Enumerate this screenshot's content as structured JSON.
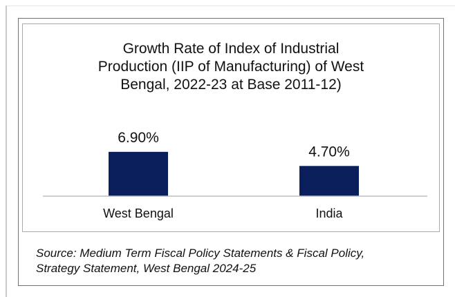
{
  "chart_data": {
    "type": "bar",
    "title_lines": [
      "Growth Rate of Index of Industrial",
      "Production (IIP of Manufacturing) of West",
      "Bengal, 2022-23 at Base 2011-12)"
    ],
    "categories": [
      "West Bengal",
      "India"
    ],
    "values": [
      6.9,
      4.7
    ],
    "data_labels": [
      "6.90%",
      "4.70%"
    ],
    "unit": "%",
    "ylim": [
      0,
      10
    ],
    "grid": false,
    "legend": "none",
    "bar_color": "#0b1f5c",
    "axis_color": "#bdbdbd"
  },
  "source_lines": [
    "Source: Medium Term Fiscal Policy Statements & Fiscal Policy,",
    "Strategy Statement, West Bengal 2024-25"
  ]
}
